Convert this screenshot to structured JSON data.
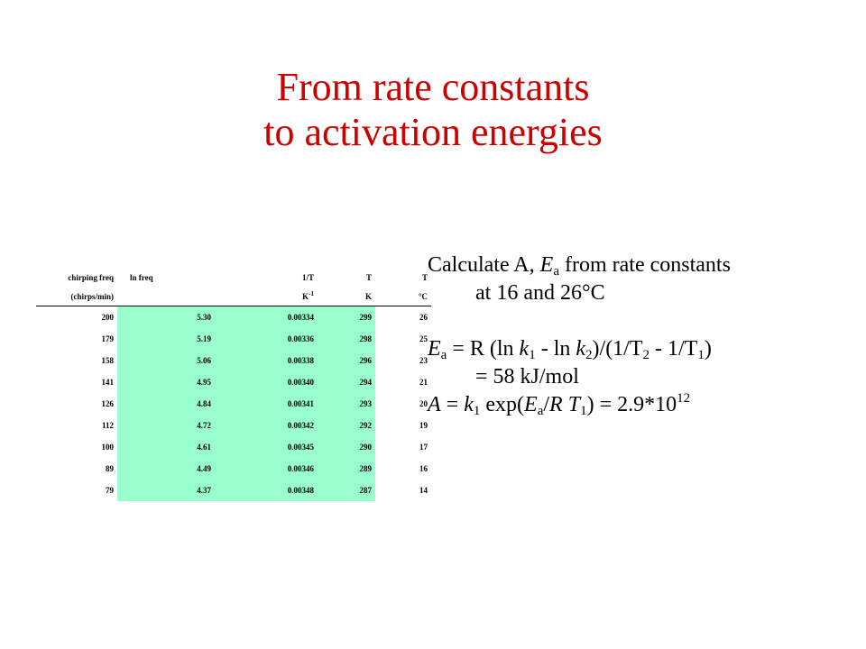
{
  "title": {
    "line1": "From rate constants",
    "line2": "to activation energies"
  },
  "table": {
    "headers": [
      "chirping freq",
      "ln freq",
      "1/T",
      "T",
      "T"
    ],
    "units": [
      "(chirps/min)",
      "",
      "K",
      "K",
      "°C"
    ],
    "unit_sup_1t": "-1",
    "rows": [
      [
        "200",
        "5.30",
        "0.00334",
        "299",
        "26"
      ],
      [
        "179",
        "5.19",
        "0.00336",
        "298",
        "25"
      ],
      [
        "158",
        "5.06",
        "0.00338",
        "296",
        "23"
      ],
      [
        "141",
        "4.95",
        "0.00340",
        "294",
        "21"
      ],
      [
        "126",
        "4.84",
        "0.00341",
        "293",
        "20"
      ],
      [
        "112",
        "4.72",
        "0.00342",
        "292",
        "19"
      ],
      [
        "100",
        "4.61",
        "0.00345",
        "290",
        "17"
      ],
      [
        "89",
        "4.49",
        "0.00346",
        "289",
        "16"
      ],
      [
        "79",
        "4.37",
        "0.00348",
        "287",
        "14"
      ]
    ]
  },
  "notes": {
    "l1_pre": "Calculate A, ",
    "l1_E": "E",
    "l1_a": "a",
    "l1_post": " from rate constants",
    "l2": "at 16 and 26°C",
    "l3": {
      "E": "E",
      "a": "a",
      "t1": " = R (ln ",
      "k": "k",
      "s1": "1",
      "t2": " - ln ",
      "s2": "2",
      "t3": ")/(1/T",
      "s3": "2",
      "t4": " - 1/T",
      "s4": "1",
      "t5": ")"
    },
    "l4": "= 58 kJ/mol",
    "l5": {
      "A": "A",
      "t1": " = ",
      "k": "k",
      "s1": "1",
      "t2": " exp(",
      "E": "E",
      "a": "a",
      "t3": "/",
      "R": "R",
      "t4": " ",
      "T": "T",
      "s2": "1",
      "t5": ") = 2.9*10",
      "exp": "12"
    }
  }
}
